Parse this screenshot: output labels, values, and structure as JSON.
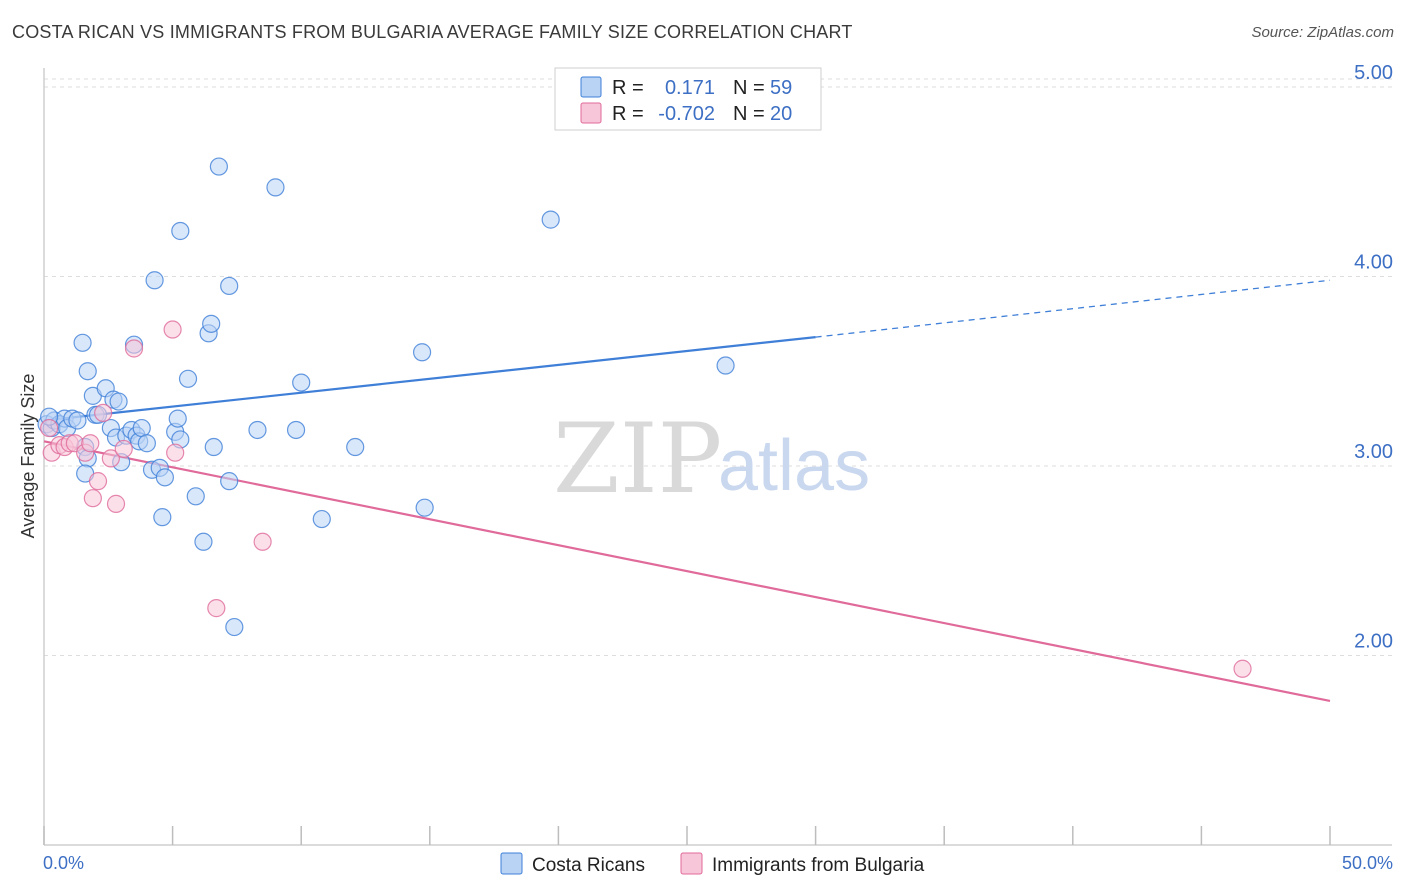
{
  "title": "COSTA RICAN VS IMMIGRANTS FROM BULGARIA AVERAGE FAMILY SIZE CORRELATION CHART",
  "source": "Source: ZipAtlas.com",
  "watermark": {
    "zip": "ZIP",
    "atlas": "atlas"
  },
  "colors": {
    "blue": "#3f7fd8",
    "blue_fill": "#b9d3f5",
    "pink": "#e06a9a",
    "pink_fill": "#f7c6d8",
    "grid": "#dddddd",
    "tick_text": "#3d6fc4"
  },
  "legend": {
    "rows": [
      {
        "r_label": "R =",
        "r_value": "0.171",
        "n_label": "N =",
        "n_value": "59",
        "series": "blue"
      },
      {
        "r_label": "R =",
        "r_value": "-0.702",
        "n_label": "N =",
        "n_value": "20",
        "series": "pink"
      }
    ]
  },
  "bottom_legend": [
    "Costa Ricans",
    "Immigrants from Bulgaria"
  ],
  "chart_data": {
    "type": "scatter",
    "title": "COSTA RICAN VS IMMIGRANTS FROM BULGARIA AVERAGE FAMILY SIZE CORRELATION CHART",
    "xlabel": "",
    "ylabel": "Average Family Size",
    "xlim": [
      0,
      50
    ],
    "ylim": [
      1.0,
      5.1
    ],
    "x_tick_labels": [
      "0.0%",
      "50.0%"
    ],
    "y_ticks": [
      2.0,
      3.0,
      4.0,
      5.0
    ],
    "y_tick_labels": [
      "2.00",
      "3.00",
      "4.00",
      "5.00"
    ],
    "grid": true,
    "series": [
      {
        "name": "Costa Ricans",
        "color": "blue",
        "points": [
          [
            0.1,
            3.22
          ],
          [
            0.3,
            3.2
          ],
          [
            0.4,
            3.24
          ],
          [
            0.6,
            3.22
          ],
          [
            0.8,
            3.25
          ],
          [
            0.9,
            3.2
          ],
          [
            1.1,
            3.25
          ],
          [
            1.3,
            3.24
          ],
          [
            1.5,
            3.65
          ],
          [
            1.6,
            3.1
          ],
          [
            1.7,
            3.04
          ],
          [
            1.6,
            2.96
          ],
          [
            1.7,
            3.5
          ],
          [
            2.0,
            3.27
          ],
          [
            1.9,
            3.37
          ],
          [
            2.1,
            3.27
          ],
          [
            2.4,
            3.41
          ],
          [
            2.6,
            3.2
          ],
          [
            2.7,
            3.35
          ],
          [
            2.8,
            3.15
          ],
          [
            2.9,
            3.34
          ],
          [
            3.0,
            3.02
          ],
          [
            3.2,
            3.16
          ],
          [
            3.4,
            3.19
          ],
          [
            3.5,
            3.64
          ],
          [
            3.6,
            3.16
          ],
          [
            3.7,
            3.13
          ],
          [
            3.8,
            3.2
          ],
          [
            4.0,
            3.12
          ],
          [
            4.2,
            2.98
          ],
          [
            4.3,
            3.98
          ],
          [
            4.5,
            2.99
          ],
          [
            4.6,
            2.73
          ],
          [
            4.7,
            2.94
          ],
          [
            5.1,
            3.18
          ],
          [
            5.2,
            3.25
          ],
          [
            5.3,
            4.24
          ],
          [
            5.3,
            3.14
          ],
          [
            5.6,
            3.46
          ],
          [
            5.9,
            2.84
          ],
          [
            6.2,
            2.6
          ],
          [
            6.4,
            3.7
          ],
          [
            6.5,
            3.75
          ],
          [
            6.6,
            3.1
          ],
          [
            6.8,
            4.58
          ],
          [
            7.2,
            2.92
          ],
          [
            7.2,
            3.95
          ],
          [
            7.4,
            2.15
          ],
          [
            8.3,
            3.19
          ],
          [
            9.0,
            4.47
          ],
          [
            9.8,
            3.19
          ],
          [
            10.0,
            3.44
          ],
          [
            10.8,
            2.72
          ],
          [
            12.1,
            3.1
          ],
          [
            14.7,
            3.6
          ],
          [
            14.8,
            2.78
          ],
          [
            19.7,
            4.3
          ],
          [
            26.5,
            3.53
          ],
          [
            0.2,
            3.26
          ]
        ]
      },
      {
        "name": "Immigrants from Bulgaria",
        "color": "pink",
        "points": [
          [
            0.2,
            3.2
          ],
          [
            0.3,
            3.07
          ],
          [
            0.6,
            3.11
          ],
          [
            0.8,
            3.1
          ],
          [
            1.0,
            3.12
          ],
          [
            1.2,
            3.12
          ],
          [
            1.6,
            3.07
          ],
          [
            1.8,
            3.12
          ],
          [
            1.9,
            2.83
          ],
          [
            2.1,
            2.92
          ],
          [
            2.3,
            3.28
          ],
          [
            2.6,
            3.04
          ],
          [
            2.8,
            2.8
          ],
          [
            3.1,
            3.09
          ],
          [
            3.5,
            3.62
          ],
          [
            5.0,
            3.72
          ],
          [
            5.1,
            3.07
          ],
          [
            6.7,
            2.25
          ],
          [
            8.5,
            2.6
          ],
          [
            46.6,
            1.93
          ]
        ]
      }
    ],
    "trendlines": [
      {
        "series": "Costa Ricans",
        "x": [
          0,
          30,
          50
        ],
        "y": [
          3.24,
          3.68,
          3.98
        ],
        "dashed_from_x": 30
      },
      {
        "series": "Immigrants from Bulgaria",
        "x": [
          0,
          50
        ],
        "y": [
          3.13,
          1.76
        ]
      }
    ]
  }
}
